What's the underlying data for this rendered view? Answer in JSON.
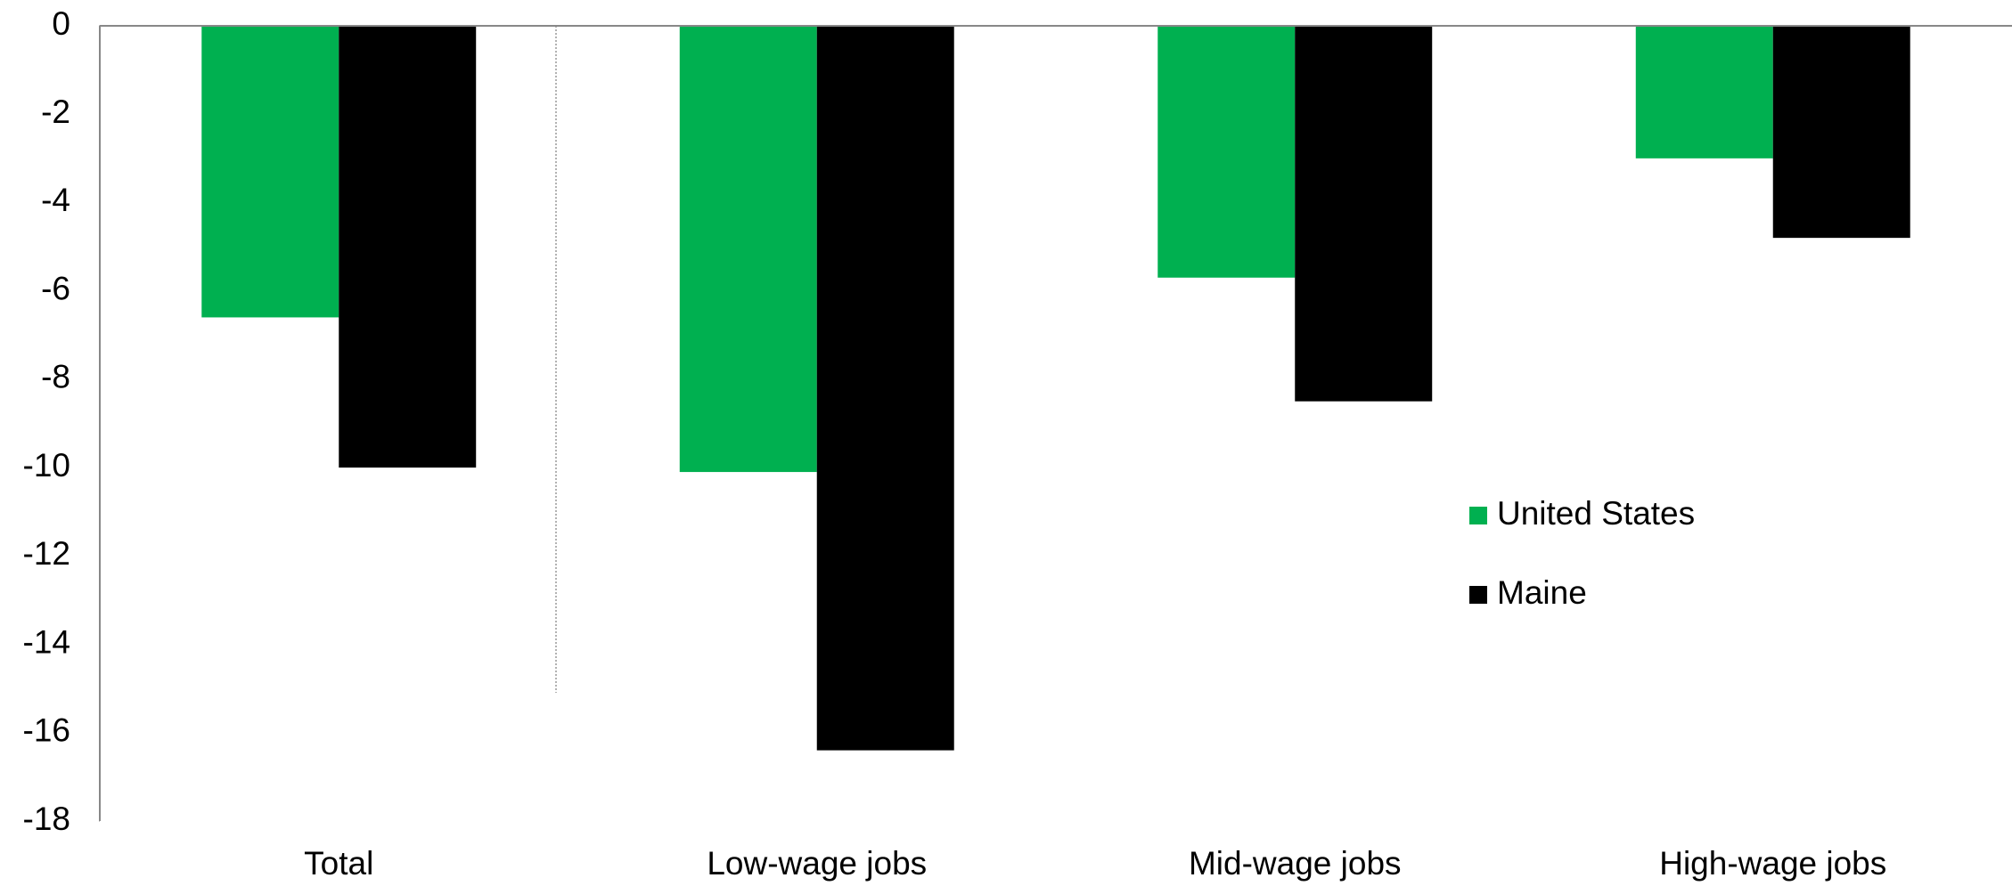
{
  "chart_data": {
    "type": "bar",
    "categories": [
      "Total",
      "Low-wage jobs",
      "Mid-wage jobs",
      "High-wage jobs"
    ],
    "series": [
      {
        "name": "United States",
        "color": "#00b050",
        "values": [
          -6.6,
          -10.1,
          -5.7,
          -3.0
        ]
      },
      {
        "name": "Maine",
        "color": "#000000",
        "values": [
          -10.0,
          -16.4,
          -8.5,
          -4.8
        ]
      }
    ],
    "ylim": [
      0,
      -18
    ],
    "yticks": [
      0,
      -2,
      -4,
      -6,
      -8,
      -10,
      -12,
      -14,
      -16,
      -18
    ],
    "grid": false,
    "legend": "right"
  }
}
